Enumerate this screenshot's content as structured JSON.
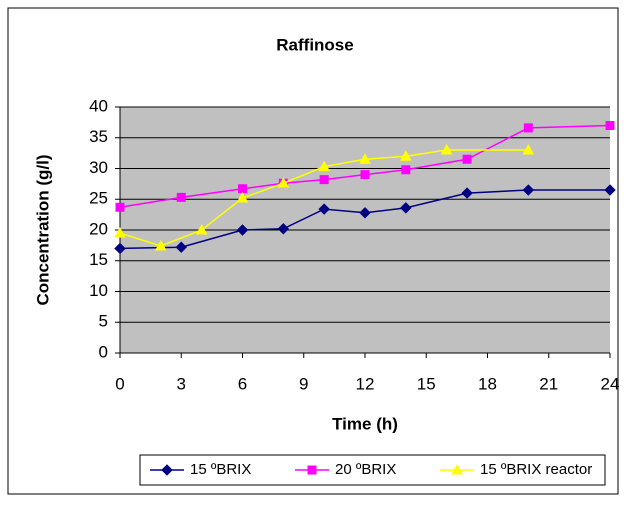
{
  "chart_data": {
    "type": "line",
    "title": "Raffinose",
    "x_label": "Time (h)",
    "y_label": "Concentration (g/l)",
    "xlim": [
      0,
      24
    ],
    "xticks": [
      0,
      3,
      6,
      9,
      12,
      15,
      18,
      21,
      24
    ],
    "ylim": [
      0,
      40
    ],
    "yticks": [
      0,
      5,
      10,
      15,
      20,
      25,
      30,
      35,
      40
    ],
    "grid": true,
    "legend": "bottom",
    "series": [
      {
        "name": "15 ºBRIX",
        "color": "#000080",
        "marker": "diamond",
        "x": [
          0,
          3,
          6,
          8,
          10,
          12,
          14,
          17,
          20,
          24
        ],
        "values": [
          17,
          17.2,
          20,
          20.2,
          23.4,
          22.8,
          23.6,
          26,
          26.5,
          26.5
        ]
      },
      {
        "name": "20 ºBRIX",
        "color": "#ff00ff",
        "marker": "square",
        "x": [
          0,
          3,
          6,
          8,
          10,
          12,
          14,
          17,
          20,
          24
        ],
        "values": [
          23.7,
          25.3,
          26.7,
          27.6,
          28.2,
          29,
          29.8,
          31.5,
          36.6,
          37
        ]
      },
      {
        "name": "15 ºBRIX reactor",
        "color": "#ffff00",
        "marker": "triangle",
        "x": [
          0,
          2,
          4,
          6,
          8,
          10,
          12,
          14,
          16,
          20
        ],
        "values": [
          19.5,
          17.4,
          20,
          25.2,
          27.6,
          30.3,
          31.5,
          32,
          33,
          33
        ]
      }
    ]
  }
}
